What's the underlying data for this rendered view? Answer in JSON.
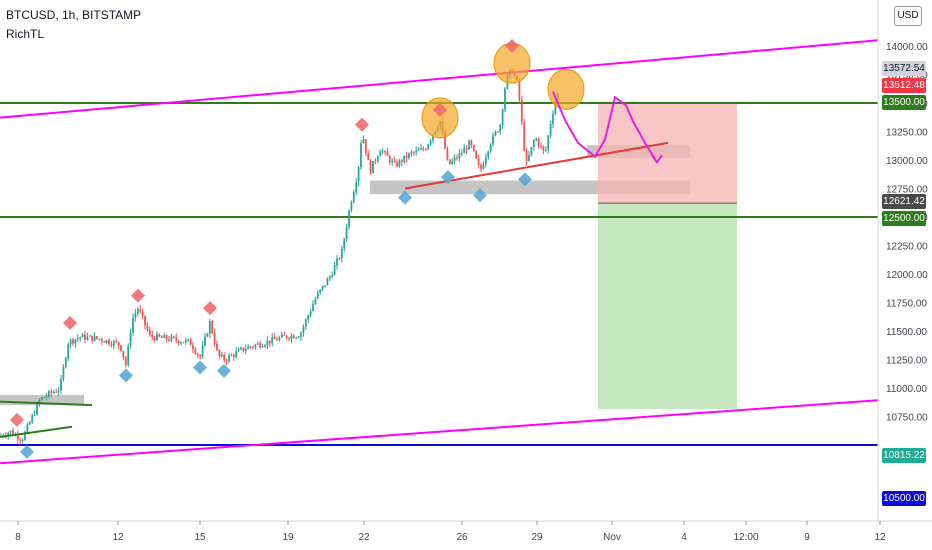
{
  "header": {
    "title": "BTCUSD, 1h, BITSTAMP",
    "indicator": "RichTL"
  },
  "currency_badge": "USD",
  "price_labels": [
    {
      "id": "p1",
      "text": "13572.54",
      "bg": "#d1d4dc",
      "fg": "#131722"
    },
    {
      "id": "p2",
      "text": "13512.48",
      "bg": "#f23645",
      "fg": "#ffffff"
    },
    {
      "id": "p3",
      "text": "13500.00",
      "bg": "#2e7d1b",
      "fg": "#ffffff"
    },
    {
      "id": "p4",
      "text": "12621.42",
      "bg": "#4a4a4a",
      "fg": "#ffffff"
    },
    {
      "id": "p5",
      "text": "12500.00",
      "bg": "#2e7d1b",
      "fg": "#ffffff"
    },
    {
      "id": "p6",
      "text": "10815.22",
      "bg": "#22ab94",
      "fg": "#ffffff"
    },
    {
      "id": "p7",
      "text": "10500.00",
      "bg": "#0a0ad9",
      "fg": "#ffffff"
    }
  ],
  "chart_data": {
    "type": "candlestick",
    "symbol": "BTCUSD",
    "interval": "1h",
    "exchange": "BITSTAMP",
    "y_axis": {
      "range": [
        10700,
        14050
      ],
      "ticks": [
        10750,
        11000,
        11250,
        11500,
        11750,
        12000,
        12250,
        12500,
        12750,
        13000,
        13250,
        13500,
        13750,
        14000
      ],
      "tick_labels": [
        "10750.00",
        "11000.00",
        "11250.00",
        "11500.00",
        "11750.00",
        "12000.00",
        "12250.00",
        "12500.00",
        "12750.00",
        "13000.00",
        "13250.00",
        "13500.00",
        "13750.00",
        "14000.00"
      ]
    },
    "x_axis": {
      "tick_labels": [
        "8",
        "12",
        "15",
        "19",
        "22",
        "26",
        "29",
        "Nov",
        "4",
        "12:00",
        "9",
        "12"
      ]
    },
    "price_path": [
      [
        0,
        10580
      ],
      [
        10,
        10620
      ],
      [
        22,
        10550
      ],
      [
        30,
        10700
      ],
      [
        40,
        10900
      ],
      [
        50,
        10950
      ],
      [
        60,
        11000
      ],
      [
        68,
        11400
      ],
      [
        80,
        11450
      ],
      [
        100,
        11430
      ],
      [
        120,
        11380
      ],
      [
        126,
        11200
      ],
      [
        132,
        11600
      ],
      [
        138,
        11700
      ],
      [
        150,
        11450
      ],
      [
        170,
        11430
      ],
      [
        190,
        11400
      ],
      [
        200,
        11270
      ],
      [
        210,
        11580
      ],
      [
        218,
        11280
      ],
      [
        225,
        11250
      ],
      [
        245,
        11350
      ],
      [
        265,
        11400
      ],
      [
        285,
        11450
      ],
      [
        300,
        11470
      ],
      [
        315,
        11780
      ],
      [
        330,
        11980
      ],
      [
        342,
        12200
      ],
      [
        350,
        12600
      ],
      [
        358,
        12900
      ],
      [
        362,
        13250
      ],
      [
        370,
        12900
      ],
      [
        380,
        13100
      ],
      [
        395,
        12950
      ],
      [
        410,
        13050
      ],
      [
        425,
        13100
      ],
      [
        440,
        13350
      ],
      [
        448,
        12950
      ],
      [
        460,
        13050
      ],
      [
        470,
        13150
      ],
      [
        480,
        12900
      ],
      [
        490,
        13150
      ],
      [
        500,
        13300
      ],
      [
        506,
        13700
      ],
      [
        512,
        13800
      ],
      [
        518,
        13650
      ],
      [
        522,
        13300
      ],
      [
        526,
        12950
      ],
      [
        535,
        13200
      ],
      [
        545,
        13050
      ],
      [
        552,
        13400
      ],
      [
        558,
        13580
      ]
    ],
    "horizontal_lines": [
      {
        "price": 13500,
        "color": "#2e7d1b"
      },
      {
        "price": 12500,
        "color": "#2e7d1b"
      },
      {
        "price": 10500,
        "color": "#0a0ad9"
      }
    ],
    "channel_lines": [
      {
        "color": "#ff00ff",
        "from": [
          0,
          13372
        ],
        "to": [
          878,
          14050
        ]
      },
      {
        "color": "#ff00ff",
        "from": [
          0,
          10340
        ],
        "to": [
          878,
          10893
        ]
      }
    ],
    "trend_lines": [
      {
        "color": "#e53935",
        "from": [
          405,
          12750
        ],
        "to": [
          668,
          13150
        ]
      },
      {
        "color": "#2e7d1b",
        "from": [
          0,
          10570
        ],
        "to": [
          72,
          10660
        ]
      },
      {
        "color": "#2e7d1b",
        "from": [
          0,
          10880
        ],
        "to": [
          92,
          10850
        ]
      }
    ],
    "zones": [
      {
        "color": "#9e9e9e",
        "x": [
          0,
          84
        ],
        "price": [
          10850,
          10940
        ]
      },
      {
        "color": "#9e9e9e",
        "x": [
          370,
          690
        ],
        "price": [
          12700,
          12820
        ]
      },
      {
        "color": "#9e9e9e",
        "x": [
          587,
          690
        ],
        "price": [
          13020,
          13130
        ]
      }
    ],
    "position": {
      "side": "short",
      "entry": 12621.42,
      "stop": 13512.48,
      "target": 10815.22,
      "x": [
        598,
        737
      ]
    },
    "pivots": [
      {
        "kind": "high",
        "x": 17,
        "price": 10650
      },
      {
        "kind": "low",
        "x": 27,
        "price": 10510
      },
      {
        "kind": "high",
        "x": 70,
        "price": 11500
      },
      {
        "kind": "low",
        "x": 126,
        "price": 11180
      },
      {
        "kind": "high",
        "x": 138,
        "price": 11740
      },
      {
        "kind": "low",
        "x": 200,
        "price": 11250
      },
      {
        "kind": "high",
        "x": 210,
        "price": 11630
      },
      {
        "kind": "low",
        "x": 224,
        "price": 11220
      },
      {
        "kind": "high",
        "x": 362,
        "price": 13240
      },
      {
        "kind": "low",
        "x": 405,
        "price": 12740
      },
      {
        "kind": "high",
        "x": 440,
        "price": 13370
      },
      {
        "kind": "low",
        "x": 448,
        "price": 12920
      },
      {
        "kind": "low",
        "x": 480,
        "price": 12760
      },
      {
        "kind": "high",
        "x": 512,
        "price": 13930
      },
      {
        "kind": "low",
        "x": 525,
        "price": 12900
      }
    ],
    "highlights": [
      {
        "x": 440,
        "price": 13370
      },
      {
        "x": 512,
        "price": 13850
      },
      {
        "x": 566,
        "price": 13620
      }
    ],
    "projection": [
      [
        553,
        13600
      ],
      [
        565,
        13350
      ],
      [
        578,
        13150
      ],
      [
        595,
        13030
      ],
      [
        605,
        13180
      ],
      [
        615,
        13550
      ],
      [
        626,
        13480
      ],
      [
        633,
        13340
      ],
      [
        645,
        13150
      ],
      [
        657,
        12980
      ]
    ]
  }
}
